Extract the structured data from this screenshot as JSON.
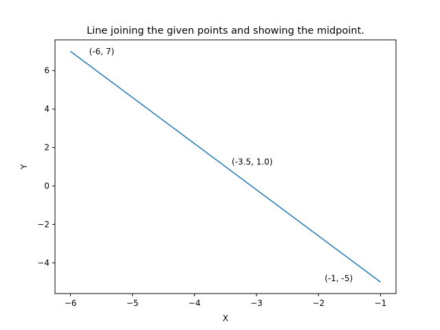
{
  "chart_data": {
    "type": "line",
    "title": "Line joining the given points and showing the midpoint.",
    "xlabel": "X",
    "ylabel": "Y",
    "xlim": [
      -6.25,
      -0.75
    ],
    "ylim": [
      -5.6,
      7.6
    ],
    "xticks": [
      -6,
      -5,
      -4,
      -3,
      -2,
      -1
    ],
    "xtick_labels": [
      "−6",
      "−5",
      "−4",
      "−3",
      "−2",
      "−1"
    ],
    "yticks": [
      -4,
      -2,
      0,
      2,
      4,
      6
    ],
    "ytick_labels": [
      "−4",
      "−2",
      "0",
      "2",
      "4",
      "6"
    ],
    "grid": false,
    "series": [
      {
        "color": "#1f77b4",
        "x": [
          -6,
          -1
        ],
        "y": [
          7,
          -5
        ]
      }
    ],
    "annotations": [
      {
        "text": "(-6, 7)",
        "x": -5.7,
        "y": 6.85
      },
      {
        "text": "(-3.5, 1.0)",
        "x": -3.4,
        "y": 1.1
      },
      {
        "text": "(-1, -5)",
        "x": -1.9,
        "y": -4.95
      }
    ]
  }
}
